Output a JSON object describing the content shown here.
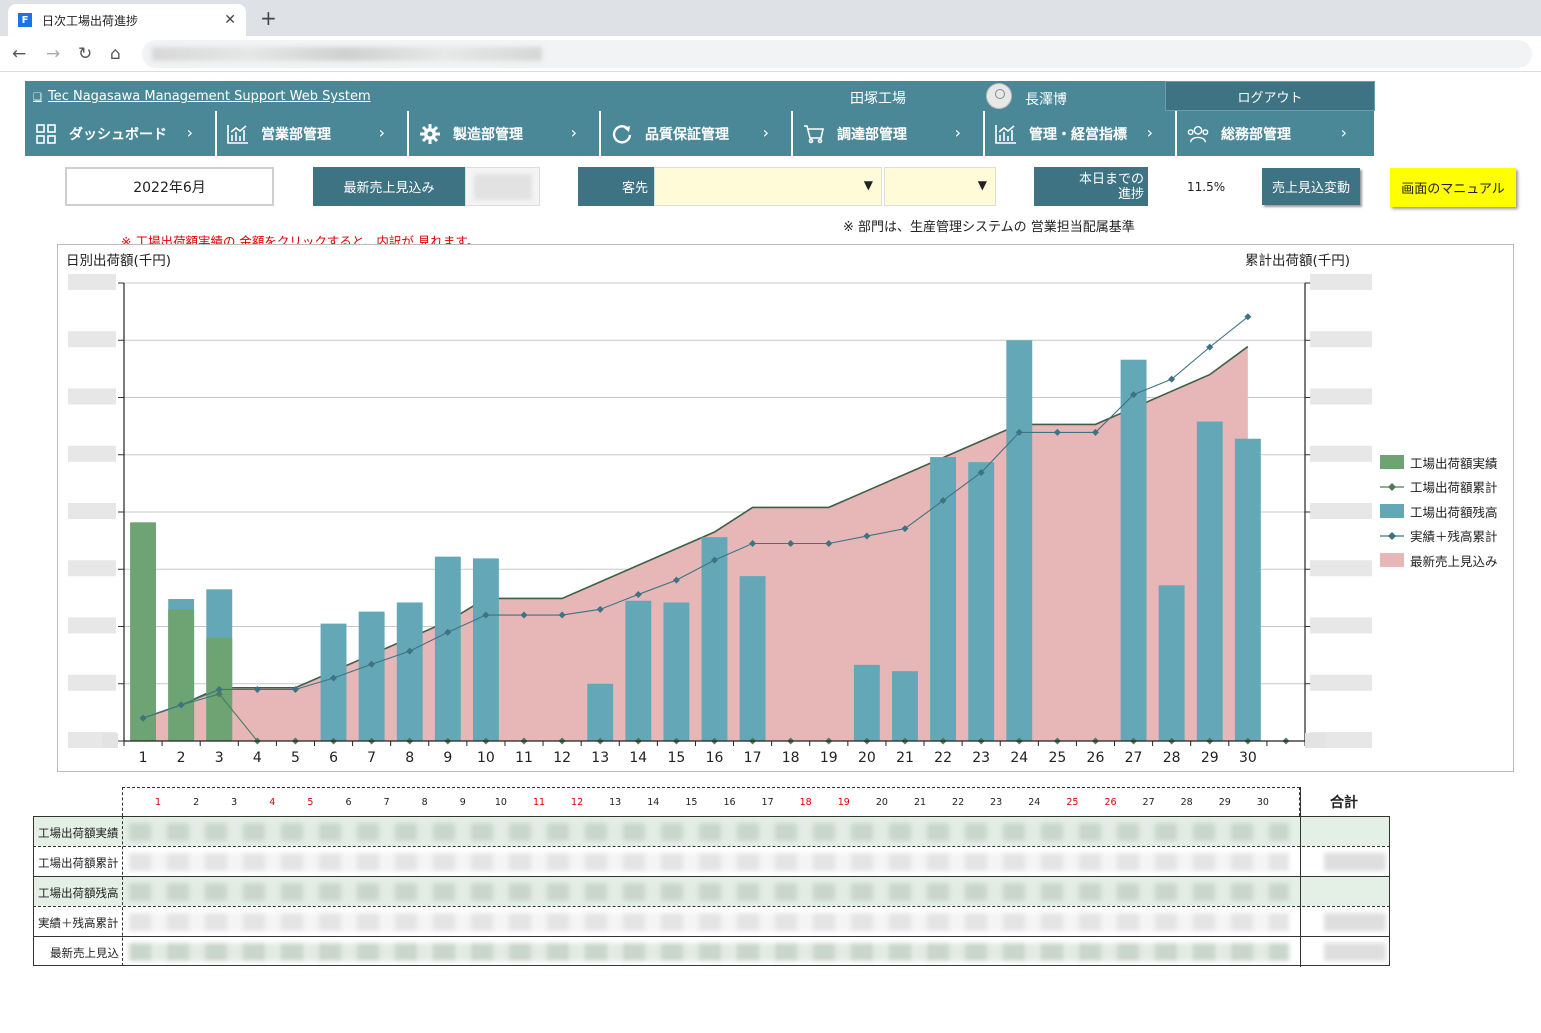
{
  "browser": {
    "tab_title": "日次工場出荷進捗",
    "favicon_letter": "F",
    "close_glyph": "✕",
    "new_tab_glyph": "+"
  },
  "header": {
    "system_name": "Tec Nagasawa Management Support Web System",
    "factory": "田塚工場",
    "user": "長澤博",
    "logout": "ログアウト"
  },
  "nav": [
    {
      "label": "ダッシュボード",
      "icon": "dashboard-icon"
    },
    {
      "label": "営業部管理",
      "icon": "bar-chart-icon"
    },
    {
      "label": "製造部管理",
      "icon": "gear-icon"
    },
    {
      "label": "品質保証管理",
      "icon": "refresh-icon"
    },
    {
      "label": "調達部管理",
      "icon": "cart-icon"
    },
    {
      "label": "管理・経営指標",
      "icon": "bar-chart-icon"
    },
    {
      "label": "総務部管理",
      "icon": "users-icon"
    }
  ],
  "controls": {
    "month": "2022年6月",
    "latest_forecast_label": "最新売上見込み",
    "customer_label": "客先",
    "progress_label": "本日までの\n進捗",
    "progress_value": "11.5%",
    "change_button": "売上見込変動",
    "manual_button": "画面のマニュアル",
    "note_right": "※ 部門は、生産管理システムの 営業担当配属基準",
    "note_red": "※ 工場出荷額実績の 金額をクリックすると、内訳が 見れます。"
  },
  "chart_data": {
    "type": "bar",
    "left_axis_title": "日別出荷額(千円)",
    "right_axis_title": "累計出荷額(千円)",
    "categories": [
      "1",
      "2",
      "3",
      "4",
      "5",
      "6",
      "7",
      "8",
      "9",
      "10",
      "11",
      "12",
      "13",
      "14",
      "15",
      "16",
      "17",
      "18",
      "19",
      "20",
      "21",
      "22",
      "23",
      "24",
      "25",
      "26",
      "27",
      "28",
      "29",
      "30"
    ],
    "y_ticks": 8,
    "grid": true,
    "legend_position": "right",
    "series": [
      {
        "name": "工場出荷額実績",
        "kind": "bar",
        "color": "#6ea474",
        "values": [
          3.82,
          2.3,
          1.8,
          0,
          0,
          0,
          0,
          0,
          0,
          0,
          0,
          0,
          0,
          0,
          0,
          0,
          0,
          0,
          0,
          0,
          0,
          0,
          0,
          0,
          0,
          0,
          0,
          0,
          0,
          0
        ]
      },
      {
        "name": "工場出荷額累計",
        "kind": "line",
        "color": "#4c7c5c",
        "values": [
          0.4,
          0.63,
          0.82,
          0,
          0,
          0,
          0,
          0,
          0,
          0,
          0,
          0,
          0,
          0,
          0,
          0,
          0,
          0,
          0,
          0,
          0,
          0,
          0,
          0,
          0,
          0,
          0,
          0,
          0,
          0
        ]
      },
      {
        "name": "工場出荷額残高",
        "kind": "bar",
        "color": "#64a8b8",
        "values": [
          0,
          2.48,
          2.65,
          0,
          0,
          2.05,
          2.26,
          2.42,
          3.22,
          3.19,
          0,
          0,
          1,
          2.45,
          2.42,
          3.56,
          2.88,
          0,
          0,
          1.33,
          1.22,
          4.96,
          4.87,
          7.0,
          0,
          0,
          6.66,
          2.72,
          5.58,
          5.28
        ]
      },
      {
        "name": "実績＋残高累計",
        "kind": "line",
        "color": "#3d7383",
        "values": [
          0.4,
          0.63,
          0.9,
          0.9,
          0.9,
          1.1,
          1.34,
          1.57,
          1.9,
          2.2,
          2.2,
          2.2,
          2.3,
          2.56,
          2.81,
          3.16,
          3.45,
          3.45,
          3.45,
          3.58,
          3.71,
          4.2,
          4.69,
          5.39,
          5.39,
          5.39,
          6.05,
          6.32,
          6.88,
          7.41
        ]
      },
      {
        "name": "最新売上見込み",
        "kind": "area",
        "color": "#e7b7b7",
        "values": [
          0.4,
          0.63,
          0.93,
          0.93,
          0.93,
          1.22,
          1.51,
          1.8,
          2.09,
          2.49,
          2.49,
          2.49,
          2.78,
          3.07,
          3.36,
          3.65,
          4.08,
          4.08,
          4.08,
          4.37,
          4.66,
          4.95,
          5.24,
          5.53,
          5.53,
          5.53,
          5.82,
          6.11,
          6.4,
          6.89
        ]
      }
    ]
  },
  "table": {
    "days": [
      {
        "d": "1",
        "red": true
      },
      {
        "d": "2",
        "red": false
      },
      {
        "d": "3",
        "red": false
      },
      {
        "d": "4",
        "red": true
      },
      {
        "d": "5",
        "red": true
      },
      {
        "d": "6",
        "red": false
      },
      {
        "d": "7",
        "red": false
      },
      {
        "d": "8",
        "red": false
      },
      {
        "d": "9",
        "red": false
      },
      {
        "d": "10",
        "red": false
      },
      {
        "d": "11",
        "red": true
      },
      {
        "d": "12",
        "red": true
      },
      {
        "d": "13",
        "red": false
      },
      {
        "d": "14",
        "red": false
      },
      {
        "d": "15",
        "red": false
      },
      {
        "d": "16",
        "red": false
      },
      {
        "d": "17",
        "red": false
      },
      {
        "d": "18",
        "red": true
      },
      {
        "d": "19",
        "red": true
      },
      {
        "d": "20",
        "red": false
      },
      {
        "d": "21",
        "red": false
      },
      {
        "d": "22",
        "red": false
      },
      {
        "d": "23",
        "red": false
      },
      {
        "d": "24",
        "red": false
      },
      {
        "d": "25",
        "red": true
      },
      {
        "d": "26",
        "red": true
      },
      {
        "d": "27",
        "red": false
      },
      {
        "d": "28",
        "red": false
      },
      {
        "d": "29",
        "red": false
      },
      {
        "d": "30",
        "red": false
      }
    ],
    "total_header": "合計",
    "rows": [
      {
        "label": "工場出荷額実績"
      },
      {
        "label": "工場出荷額累計"
      },
      {
        "label": "工場出荷額残高"
      },
      {
        "label": "実績＋残高累計"
      },
      {
        "label": "最新売上見込"
      }
    ]
  }
}
